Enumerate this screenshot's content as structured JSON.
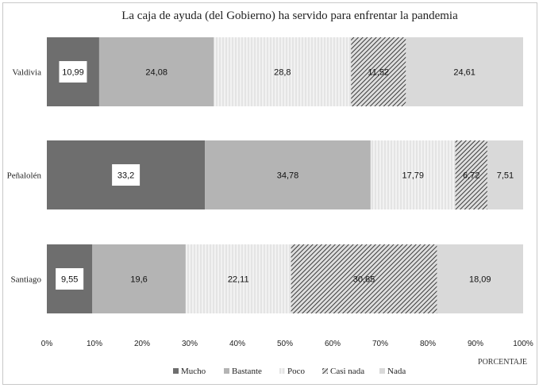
{
  "chart_data": {
    "type": "bar",
    "orientation": "horizontal",
    "stacked": true,
    "title": "La caja de ayuda (del Gobierno) ha servido para enfrentar la pandemia",
    "xlabel": "PORCENTAJE",
    "ylabel": "",
    "xlim": [
      0,
      100
    ],
    "x_tick_labels": [
      "0%",
      "10%",
      "20%",
      "30%",
      "40%",
      "50%",
      "60%",
      "70%",
      "80%",
      "90%",
      "100%"
    ],
    "grid": false,
    "legend_position": "bottom",
    "categories": [
      "Valdivia",
      "Peñalolén",
      "Santiago"
    ],
    "value_labels": [
      [
        "10,99",
        "24,08",
        "28,8",
        "11,52",
        "24,61"
      ],
      [
        "33,2",
        "34,78",
        "17,79",
        "6,72",
        "7,51"
      ],
      [
        "9,55",
        "19,6",
        "22,11",
        "30,65",
        "18,09"
      ]
    ],
    "series": [
      {
        "name": "Mucho",
        "values": [
          10.99,
          33.2,
          9.55
        ],
        "color": "#6e6e6e",
        "fill": "solid"
      },
      {
        "name": "Bastante",
        "values": [
          24.08,
          34.78,
          19.6
        ],
        "color": "#b4b4b4",
        "fill": "solid"
      },
      {
        "name": "Poco",
        "values": [
          28.8,
          17.79,
          22.11
        ],
        "color": "#eeeeee",
        "fill": "vertical-lines"
      },
      {
        "name": "Casi nada",
        "values": [
          11.52,
          6.72,
          30.65
        ],
        "color": "#444444",
        "fill": "diagonal-hatch"
      },
      {
        "name": "Nada",
        "values": [
          24.61,
          7.51,
          18.09
        ],
        "color": "#d9d9d9",
        "fill": "solid"
      }
    ]
  }
}
